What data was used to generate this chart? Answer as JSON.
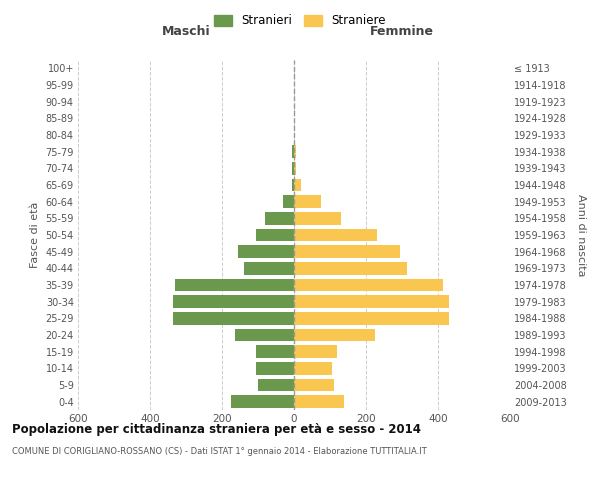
{
  "age_groups": [
    "0-4",
    "5-9",
    "10-14",
    "15-19",
    "20-24",
    "25-29",
    "30-34",
    "35-39",
    "40-44",
    "45-49",
    "50-54",
    "55-59",
    "60-64",
    "65-69",
    "70-74",
    "75-79",
    "80-84",
    "85-89",
    "90-94",
    "95-99",
    "100+"
  ],
  "birth_years": [
    "2009-2013",
    "2004-2008",
    "1999-2003",
    "1994-1998",
    "1989-1993",
    "1984-1988",
    "1979-1983",
    "1974-1978",
    "1969-1973",
    "1964-1968",
    "1959-1963",
    "1954-1958",
    "1949-1953",
    "1944-1948",
    "1939-1943",
    "1934-1938",
    "1929-1933",
    "1924-1928",
    "1919-1923",
    "1914-1918",
    "≤ 1913"
  ],
  "maschi": [
    175,
    100,
    105,
    105,
    165,
    335,
    335,
    330,
    140,
    155,
    105,
    80,
    30,
    5,
    5,
    5,
    0,
    0,
    0,
    0,
    0
  ],
  "femmine": [
    140,
    110,
    105,
    120,
    225,
    430,
    430,
    415,
    315,
    295,
    230,
    130,
    75,
    20,
    5,
    5,
    0,
    0,
    0,
    0,
    0
  ],
  "male_color": "#6a994e",
  "female_color": "#f9c74f",
  "background_color": "#ffffff",
  "grid_color": "#cccccc",
  "title": "Popolazione per cittadinanza straniera per età e sesso - 2014",
  "subtitle": "COMUNE DI CORIGLIANO-ROSSANO (CS) - Dati ISTAT 1° gennaio 2014 - Elaborazione TUTTITALIA.IT",
  "ylabel_left": "Fasce di età",
  "ylabel_right": "Anni di nascita",
  "maschi_label": "Maschi",
  "femmine_label": "Femmine",
  "legend_stranieri": "Stranieri",
  "legend_straniere": "Straniere",
  "xlim": 600,
  "bar_height": 0.75
}
